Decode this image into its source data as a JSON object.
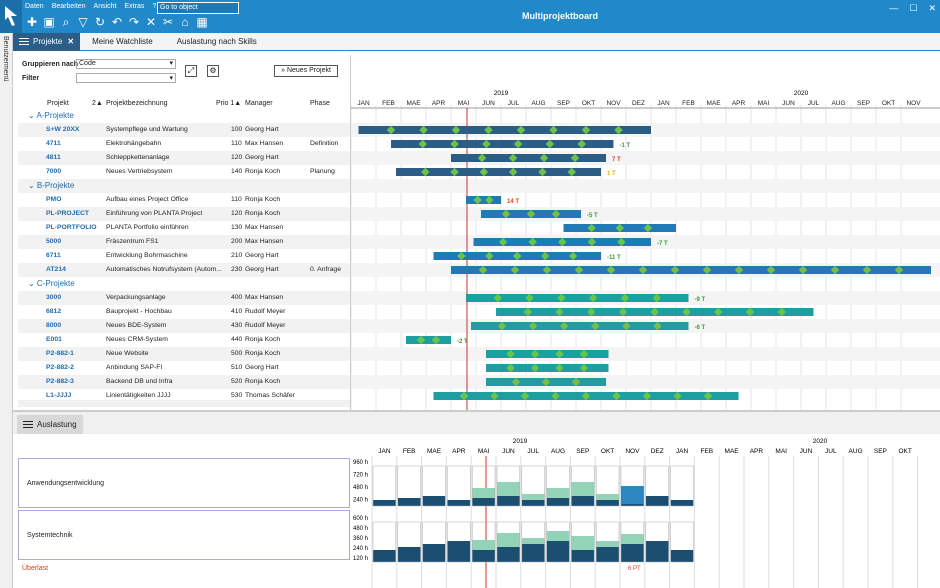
{
  "app": {
    "title": "Multiprojektboard",
    "goto_placeholder": "Go to object",
    "menu": [
      "Daten",
      "Bearbeiten",
      "Ansicht",
      "Extras",
      "?"
    ]
  },
  "sidebar": {
    "label": "Benutzermenü"
  },
  "tabs": [
    {
      "label": "Projekte"
    },
    {
      "label": "Meine Watchliste"
    },
    {
      "label": "Auslastung nach Skills"
    }
  ],
  "toolbar": {
    "group_label": "Gruppieren nach",
    "group_value": "Code",
    "filter_label": "Filter",
    "new_project": "Neues Projekt"
  },
  "columns": {
    "projekt": "Projekt",
    "sort2": "2▲",
    "bezeichnung": "Projektbezeichnung",
    "prio": "Prio 1▲",
    "manager": "Manager",
    "phase": "Phase"
  },
  "months": [
    "JAN",
    "FEB",
    "MAE",
    "APR",
    "MAI",
    "JUN",
    "JUL",
    "AUG",
    "SEP",
    "OKT",
    "NOV",
    "DEZ",
    "JAN",
    "FEB",
    "MAE",
    "APR",
    "MAI",
    "JUN",
    "JUL",
    "AUG",
    "SEP",
    "OKT",
    "NOV"
  ],
  "years": [
    "2019",
    "2020"
  ],
  "rows": [
    {
      "group": "A-Projekte"
    },
    {
      "code": "S+W 20XX",
      "desc": "Systempflege und Wartung",
      "prio": "100",
      "mgr": "Georg Hart",
      "phase": ""
    },
    {
      "code": "4711",
      "desc": "Elektrohängebahn",
      "prio": "110",
      "mgr": "Max Hansen",
      "phase": "Definition"
    },
    {
      "code": "4811",
      "desc": "Schleppkettenanlage",
      "prio": "120",
      "mgr": "Georg Hart",
      "phase": ""
    },
    {
      "code": "7000",
      "desc": "Neues Vertriebsystem",
      "prio": "140",
      "mgr": "Ronja Koch",
      "phase": "Planung"
    },
    {
      "group": "B-Projekte"
    },
    {
      "code": "PMO",
      "desc": "Aufbau eines Project Office",
      "prio": "110",
      "mgr": "Ronja Koch",
      "phase": ""
    },
    {
      "code": "PL-PROJECT",
      "desc": "Einführung von PLANTA Project",
      "prio": "120",
      "mgr": "Ronja Koch",
      "phase": ""
    },
    {
      "code": "PL-PORTFOLIO",
      "desc": "PLANTA Portfolio einführen",
      "prio": "130",
      "mgr": "Max Hansen",
      "phase": ""
    },
    {
      "code": "5000",
      "desc": "Fräszentrum FS1",
      "prio": "200",
      "mgr": "Max Hansen",
      "phase": ""
    },
    {
      "code": "6711",
      "desc": "Entwicklung Bohrmaschine",
      "prio": "210",
      "mgr": "Georg Hart",
      "phase": ""
    },
    {
      "code": "AT214",
      "desc": "Automatisches Notrufsystem (Autom...",
      "prio": "230",
      "mgr": "Georg Hart",
      "phase": "0. Anfrage"
    },
    {
      "group": "C-Projekte"
    },
    {
      "code": "3000",
      "desc": "Verpackungsanlage",
      "prio": "400",
      "mgr": "Max Hansen",
      "phase": ""
    },
    {
      "code": "6812",
      "desc": "Bauprojekt - Hochbau",
      "prio": "410",
      "mgr": "Rudolf Meyer",
      "phase": ""
    },
    {
      "code": "8000",
      "desc": "Neues BDE-System",
      "prio": "430",
      "mgr": "Rudolf Meyer",
      "phase": ""
    },
    {
      "code": "E001",
      "desc": "Neues CRM-System",
      "prio": "440",
      "mgr": "Ronja Koch",
      "phase": ""
    },
    {
      "code": "P2-882-1",
      "desc": "Neue Website",
      "prio": "500",
      "mgr": "Ronja Koch",
      "phase": ""
    },
    {
      "code": "P2-882-2",
      "desc": "Anbindung SAP-FI",
      "prio": "510",
      "mgr": "Georg Hart",
      "phase": ""
    },
    {
      "code": "P2-882-3",
      "desc": "Backend DB und Infra",
      "prio": "520",
      "mgr": "Ronja Koch",
      "phase": ""
    },
    {
      "code": "L1-JJJJ",
      "desc": "Linientätigkeiten JJJJ",
      "prio": "530",
      "mgr": "Thomas Schäfer",
      "phase": ""
    }
  ],
  "bars": [
    {
      "row": 1,
      "start": 0.3,
      "end": 12.0,
      "color": "#2b5d86",
      "label": ""
    },
    {
      "row": 2,
      "start": 1.6,
      "end": 10.5,
      "color": "#2b5d86",
      "label": "-1 T",
      "lcolor": "#3a9a3a"
    },
    {
      "row": 3,
      "start": 4.0,
      "end": 10.2,
      "color": "#2b5d86",
      "label": "7 T",
      "lcolor": "#e04020"
    },
    {
      "row": 4,
      "start": 1.8,
      "end": 10.0,
      "color": "#2b5d86",
      "label": "1 T",
      "lcolor": "#d8b000"
    },
    {
      "row": 6,
      "start": 4.6,
      "end": 6.0,
      "color": "#1f7ab5",
      "label": "14 T",
      "lcolor": "#e04020"
    },
    {
      "row": 7,
      "start": 5.2,
      "end": 9.2,
      "color": "#1f7ab5",
      "label": "-5 T",
      "lcolor": "#3a9a3a"
    },
    {
      "row": 8,
      "start": 8.5,
      "end": 13.0,
      "color": "#1f7ab5",
      "label": ""
    },
    {
      "row": 9,
      "start": 4.9,
      "end": 12.0,
      "color": "#1f7ab5",
      "label": "-7 T",
      "lcolor": "#3a9a3a"
    },
    {
      "row": 10,
      "start": 3.3,
      "end": 10.0,
      "color": "#1f7ab5",
      "label": "-11 T",
      "lcolor": "#3a9a3a"
    },
    {
      "row": 11,
      "start": 4.0,
      "end": 23.2,
      "color": "#1f7ab5",
      "label": ""
    },
    {
      "row": 13,
      "start": 4.6,
      "end": 13.5,
      "color": "#1e9ea0",
      "label": "-9 T",
      "lcolor": "#3a9a3a"
    },
    {
      "row": 14,
      "start": 5.8,
      "end": 18.5,
      "color": "#1e9ea0",
      "label": ""
    },
    {
      "row": 15,
      "start": 4.8,
      "end": 13.5,
      "color": "#1e9ea0",
      "label": "-6 T",
      "lcolor": "#3a9a3a"
    },
    {
      "row": 16,
      "start": 2.2,
      "end": 4.0,
      "color": "#1e9ea0",
      "label": "-2 T",
      "lcolor": "#3a9a3a"
    },
    {
      "row": 17,
      "start": 5.4,
      "end": 10.3,
      "color": "#1e9ea0",
      "label": ""
    },
    {
      "row": 18,
      "start": 5.4,
      "end": 10.3,
      "color": "#1e9ea0",
      "label": ""
    },
    {
      "row": 19,
      "start": 5.4,
      "end": 10.2,
      "color": "#1e9ea0",
      "label": ""
    },
    {
      "row": 20,
      "start": 3.3,
      "end": 15.5,
      "color": "#1e9ea0",
      "label": ""
    }
  ],
  "lower": {
    "tab": "Auslastung",
    "groups": [
      {
        "label": "Anwendungsentwicklung",
        "ticks": [
          "960 h",
          "720 h",
          "480 h",
          "240 h"
        ]
      },
      {
        "label": "Systemtechnik",
        "ticks": [
          "600 h",
          "480 h",
          "360 h",
          "240 h",
          "120 h"
        ]
      }
    ],
    "overload_label": "Überlast",
    "overload_value": "6 PT"
  }
}
